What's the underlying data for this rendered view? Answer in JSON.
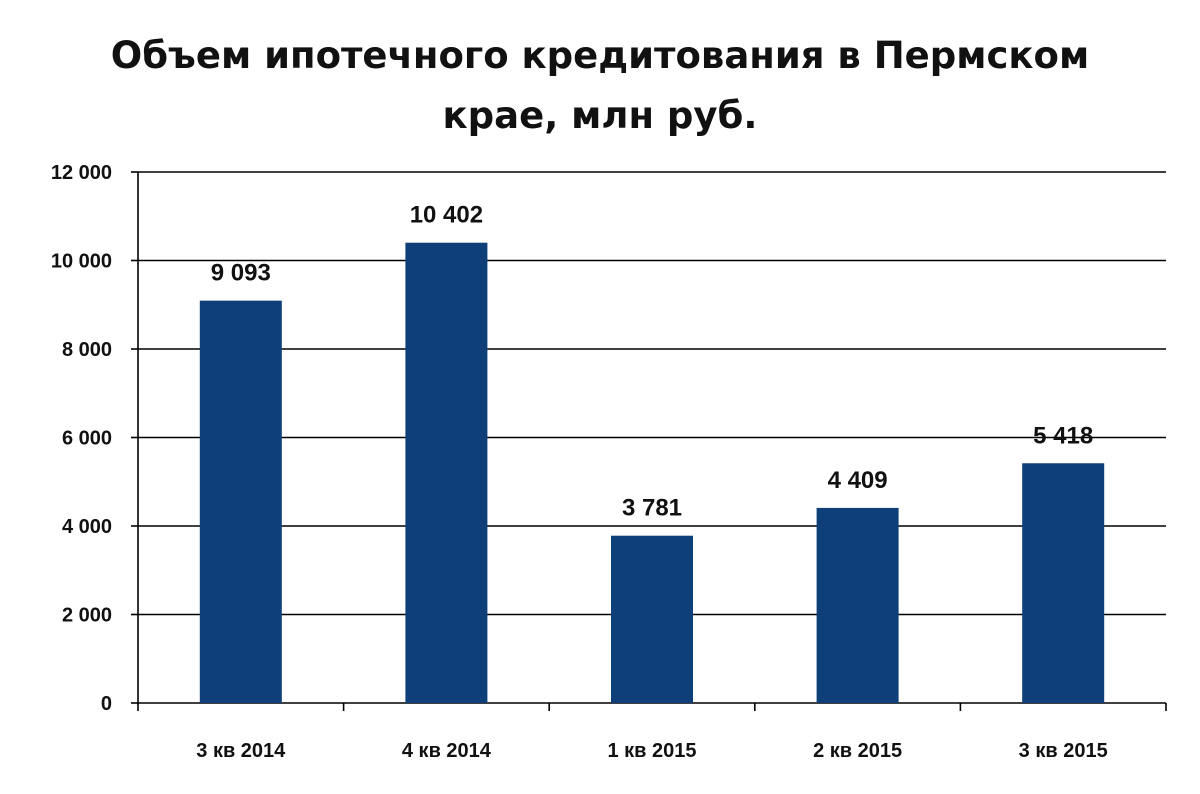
{
  "chart_data": {
    "type": "bar",
    "title": [
      "Объем ипотечного кредитования в Пермском",
      "крае, млн руб."
    ],
    "xlabel": "",
    "ylabel": "",
    "categories": [
      "3 кв 2014",
      "4 кв 2014",
      "1 кв 2015",
      "2 кв 2015",
      "3 кв 2015"
    ],
    "values": [
      9093,
      10402,
      3781,
      4409,
      5418
    ],
    "value_labels": [
      "9 093",
      "10 402",
      "3 781",
      "4 409",
      "5 418"
    ],
    "ylim": [
      0,
      12000
    ],
    "yticks": [
      0,
      2000,
      4000,
      6000,
      8000,
      10000,
      12000
    ],
    "ytick_labels": [
      "0",
      "2 000",
      "4 000",
      "6 000",
      "8 000",
      "10 000",
      "12 000"
    ],
    "grid": true,
    "legend": "none",
    "bar_color": "#0f3f78",
    "grid_color": "#000000",
    "text_color": "#111111"
  }
}
